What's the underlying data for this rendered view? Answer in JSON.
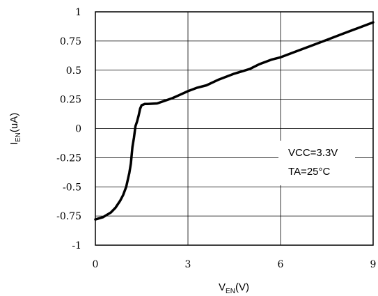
{
  "chart_data": {
    "type": "line",
    "title": "",
    "xlabel": {
      "main": "V",
      "sub": "EN",
      "suffix": "(V)"
    },
    "ylabel": {
      "main": "I",
      "sub": "EN",
      "suffix": "(uA)"
    },
    "xlim": [
      0,
      9
    ],
    "ylim": [
      -1,
      1
    ],
    "x_ticks": [
      "0",
      "3",
      "6",
      "9"
    ],
    "y_ticks": [
      "1",
      "0.75",
      "0.5",
      "0.25",
      "0",
      "-0.25",
      "-0.5",
      "-0.75",
      "-1"
    ],
    "grid": true,
    "annotations": [
      "VCC=3.3V",
      "TA=25°C"
    ],
    "series": [
      {
        "x": [
          0,
          0.25,
          0.5,
          0.65,
          0.8,
          0.9,
          1.0,
          1.1,
          1.15,
          1.2,
          1.25,
          1.3,
          1.35,
          1.4,
          1.45,
          1.5,
          1.55,
          1.6,
          1.7,
          2.0,
          2.5,
          3.0,
          3.3,
          3.6,
          4.0,
          4.5,
          5.0,
          5.3,
          5.7,
          6.0,
          6.5,
          7.0,
          7.5,
          8.0,
          8.5,
          9.0
        ],
        "y": [
          -0.78,
          -0.76,
          -0.72,
          -0.68,
          -0.62,
          -0.57,
          -0.5,
          -0.38,
          -0.3,
          -0.16,
          -0.08,
          0.02,
          0.06,
          0.11,
          0.17,
          0.2,
          0.205,
          0.21,
          0.21,
          0.215,
          0.26,
          0.32,
          0.35,
          0.37,
          0.42,
          0.47,
          0.51,
          0.55,
          0.59,
          0.61,
          0.66,
          0.71,
          0.76,
          0.81,
          0.86,
          0.91
        ]
      }
    ]
  }
}
